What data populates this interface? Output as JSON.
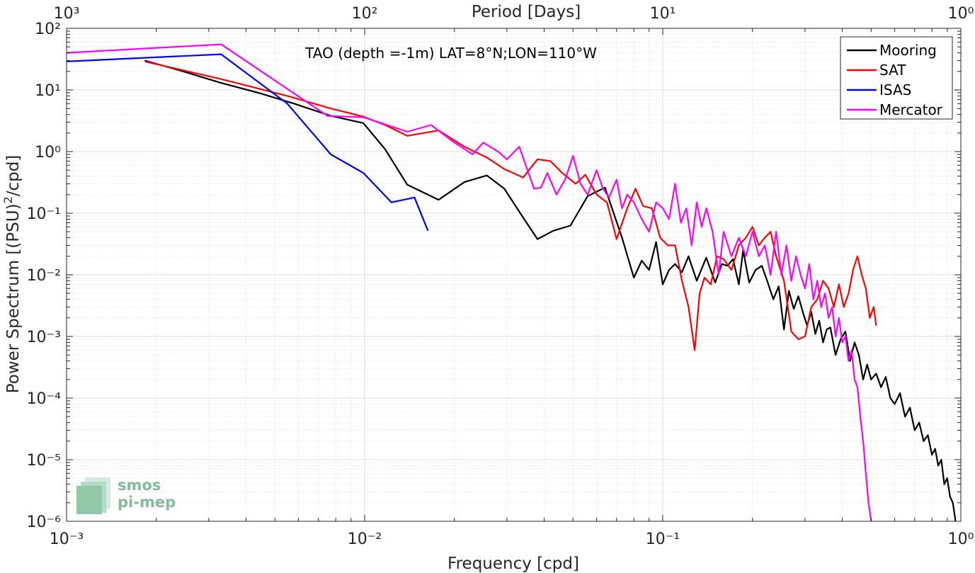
{
  "chart_data": {
    "type": "line",
    "title": "TAO (depth =-1m) LAT=8°N;LON=110°W",
    "xlabel": "Frequency [cpd]",
    "ylabel": "Power Spectrum [(PSU)²/cpd]",
    "top_xlabel": "Period [Days]",
    "x_scale": "log",
    "y_scale": "log",
    "xlim": [
      0.001,
      1
    ],
    "ylim": [
      1e-06,
      100
    ],
    "grid": true,
    "legend_position": "top-right",
    "x_tick_labels": [
      "10⁻³",
      "10⁻²",
      "10⁻¹",
      "10⁰"
    ],
    "top_tick_labels": [
      "10³",
      "10²",
      "10¹",
      "10⁰"
    ],
    "y_tick_labels": [
      "10⁻⁶",
      "10⁻⁵",
      "10⁻⁴",
      "10⁻³",
      "10⁻²",
      "10⁻¹",
      "10⁰",
      "10¹",
      "10²"
    ],
    "series": [
      {
        "name": "Mooring",
        "color": "#000000",
        "x": [
          0.00183,
          0.00246,
          0.0033,
          0.0044,
          0.0058,
          0.0077,
          0.0099,
          0.0117,
          0.0139,
          0.0177,
          0.0216,
          0.0257,
          0.0294,
          0.034,
          0.038,
          0.043,
          0.049,
          0.056,
          0.064,
          0.073,
          0.08,
          0.085,
          0.09,
          0.095,
          0.1,
          0.105,
          0.11,
          0.116,
          0.122,
          0.13,
          0.14,
          0.15,
          0.158,
          0.165,
          0.172,
          0.18,
          0.186,
          0.195,
          0.205,
          0.215,
          0.225,
          0.235,
          0.245,
          0.255,
          0.265,
          0.275,
          0.285,
          0.295,
          0.305,
          0.315,
          0.325,
          0.335,
          0.345,
          0.355,
          0.365,
          0.38,
          0.395,
          0.41,
          0.425,
          0.44,
          0.455,
          0.47,
          0.485,
          0.5,
          0.52,
          0.54,
          0.56,
          0.58,
          0.6,
          0.625,
          0.65,
          0.675,
          0.7,
          0.725,
          0.75,
          0.775,
          0.8,
          0.82,
          0.84,
          0.86,
          0.88,
          0.9,
          0.92,
          0.94,
          0.96
        ],
        "y": [
          30,
          20,
          13,
          9,
          6,
          3.8,
          2.9,
          1.1,
          0.29,
          0.165,
          0.32,
          0.41,
          0.25,
          0.085,
          0.038,
          0.052,
          0.063,
          0.19,
          0.26,
          0.04,
          0.009,
          0.017,
          0.012,
          0.034,
          0.007,
          0.012,
          0.015,
          0.011,
          0.02,
          0.008,
          0.019,
          0.0075,
          0.015,
          0.014,
          0.018,
          0.007,
          0.025,
          0.0075,
          0.012,
          0.014,
          0.0075,
          0.004,
          0.0065,
          0.0013,
          0.0055,
          0.0028,
          0.0045,
          0.0025,
          0.0015,
          0.0025,
          0.0011,
          0.0018,
          0.0008,
          0.0013,
          0.0014,
          0.0005,
          0.0009,
          0.0012,
          0.0004,
          0.0008,
          0.0005,
          0.0002,
          0.00035,
          0.0002,
          0.00025,
          0.00015,
          0.00022,
          0.0001,
          8e-05,
          0.00012,
          5e-05,
          7e-05,
          3e-05,
          4e-05,
          2e-05,
          2.5e-05,
          1.2e-05,
          1.5e-05,
          8e-06,
          1e-05,
          4e-06,
          5e-06,
          2.5e-06,
          2e-06,
          1e-06
        ]
      },
      {
        "name": "SAT",
        "color": "#ff0000",
        "x": [
          0.00183,
          0.0033,
          0.0055,
          0.0077,
          0.0099,
          0.0117,
          0.0139,
          0.0177,
          0.0216,
          0.0257,
          0.0294,
          0.034,
          0.038,
          0.042,
          0.046,
          0.051,
          0.055,
          0.06,
          0.065,
          0.07,
          0.076,
          0.081,
          0.086,
          0.092,
          0.098,
          0.104,
          0.11,
          0.116,
          0.122,
          0.128,
          0.133,
          0.138,
          0.145,
          0.152,
          0.16,
          0.17,
          0.18,
          0.19,
          0.2,
          0.21,
          0.22,
          0.23,
          0.24,
          0.255,
          0.27,
          0.285,
          0.3,
          0.315,
          0.33,
          0.345,
          0.36,
          0.375,
          0.39,
          0.405,
          0.42,
          0.435,
          0.45,
          0.465,
          0.48,
          0.495,
          0.51,
          0.52
        ],
        "y": [
          29,
          15,
          8,
          5,
          3.7,
          2.7,
          1.8,
          2.2,
          1.2,
          0.8,
          0.52,
          0.38,
          0.75,
          0.7,
          0.45,
          0.3,
          0.42,
          0.2,
          0.15,
          0.038,
          0.12,
          0.25,
          0.13,
          0.12,
          0.04,
          0.03,
          0.03,
          0.008,
          0.003,
          0.0006,
          0.005,
          0.009,
          0.007,
          0.02,
          0.018,
          0.012,
          0.03,
          0.04,
          0.06,
          0.03,
          0.04,
          0.05,
          0.02,
          0.008,
          0.0012,
          0.0009,
          0.001,
          0.003,
          0.004,
          0.008,
          0.006,
          0.003,
          0.007,
          0.003,
          0.005,
          0.012,
          0.02,
          0.01,
          0.006,
          0.002,
          0.003,
          0.0015
        ]
      },
      {
        "name": "ISAS",
        "color": "#0000ff",
        "x": [
          0.001,
          0.0033,
          0.0055,
          0.0077,
          0.0099,
          0.0123,
          0.0147,
          0.0163
        ],
        "y": [
          29,
          38,
          6,
          0.9,
          0.45,
          0.15,
          0.18,
          0.052
        ]
      },
      {
        "name": "Mercator",
        "color": "#ff00ff",
        "x": [
          0.001,
          0.0033,
          0.0075,
          0.0099,
          0.0139,
          0.0167,
          0.0196,
          0.023,
          0.025,
          0.028,
          0.03,
          0.033,
          0.037,
          0.039,
          0.041,
          0.044,
          0.047,
          0.05,
          0.053,
          0.056,
          0.06,
          0.063,
          0.066,
          0.07,
          0.073,
          0.076,
          0.08,
          0.085,
          0.09,
          0.095,
          0.1,
          0.105,
          0.11,
          0.115,
          0.12,
          0.125,
          0.13,
          0.135,
          0.14,
          0.147,
          0.154,
          0.16,
          0.17,
          0.18,
          0.19,
          0.2,
          0.21,
          0.22,
          0.23,
          0.24,
          0.25,
          0.26,
          0.27,
          0.28,
          0.29,
          0.3,
          0.31,
          0.32,
          0.33,
          0.34,
          0.35,
          0.36,
          0.37,
          0.38,
          0.39,
          0.4,
          0.41,
          0.42,
          0.43,
          0.44,
          0.45,
          0.46,
          0.47,
          0.48,
          0.49,
          0.5
        ],
        "y": [
          40,
          55,
          3.8,
          3.6,
          2.1,
          2.7,
          1.5,
          0.9,
          1.4,
          1.0,
          0.75,
          1.2,
          0.25,
          0.26,
          0.45,
          0.2,
          0.35,
          0.85,
          0.3,
          0.2,
          0.5,
          0.25,
          0.18,
          0.35,
          0.12,
          0.2,
          0.15,
          0.08,
          0.05,
          0.15,
          0.12,
          0.08,
          0.3,
          0.07,
          0.12,
          0.03,
          0.15,
          0.06,
          0.12,
          0.05,
          0.01,
          0.05,
          0.02,
          0.04,
          0.02,
          0.05,
          0.02,
          0.03,
          0.01,
          0.05,
          0.01,
          0.03,
          0.008,
          0.02,
          0.01,
          0.006,
          0.015,
          0.004,
          0.008,
          0.003,
          0.005,
          0.002,
          0.003,
          0.001,
          0.002,
          0.0008,
          0.001,
          0.0004,
          0.0006,
          0.0002,
          0.00015,
          5e-05,
          2e-05,
          6e-06,
          2e-06,
          1e-06
        ]
      }
    ]
  },
  "logo": {
    "line1": "smos",
    "line2": "pi-mep"
  }
}
